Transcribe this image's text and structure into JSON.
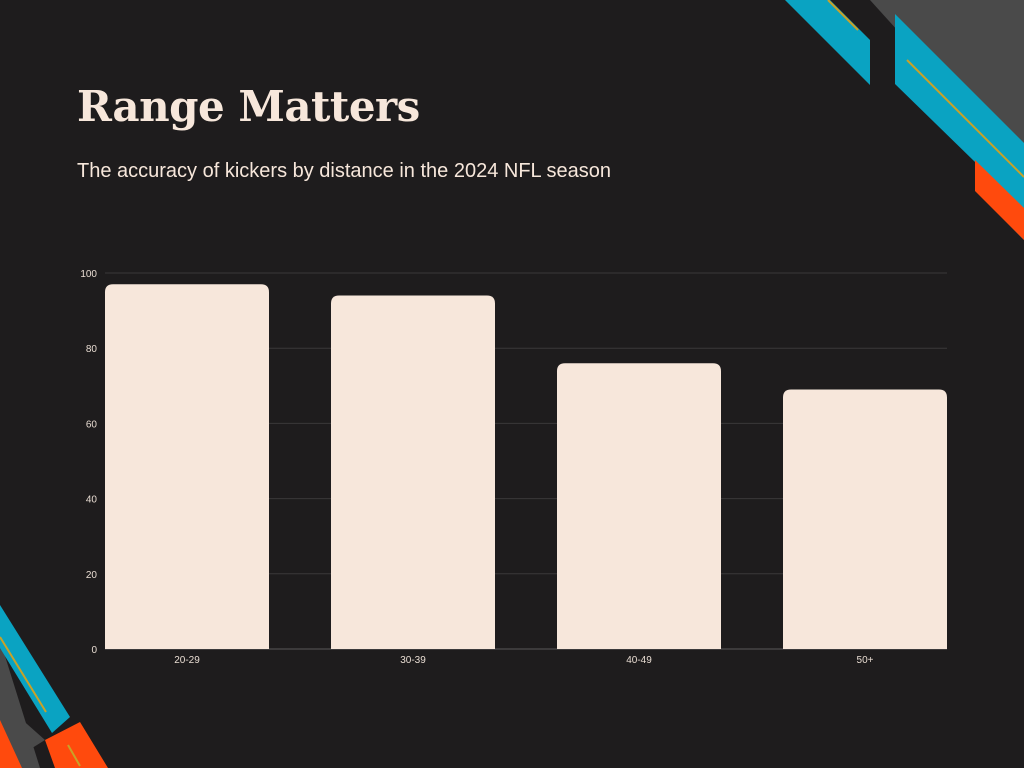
{
  "slide": {
    "title": "Range Matters",
    "subtitle": "The accuracy of kickers by distance in the 2024 NFL season"
  },
  "colors": {
    "background": "#1e1c1d",
    "bar": "#f7e7db",
    "text": "#f7e7db",
    "gridline": "#3a3839",
    "accent_blue": "#0aa3c2",
    "accent_orange": "#ff4a0d",
    "accent_gray": "#4a4a4a",
    "accent_gold": "#c9a227"
  },
  "chart_data": {
    "type": "bar",
    "categories": [
      "20-29",
      "30-39",
      "40-49",
      "50+"
    ],
    "values": [
      97,
      94,
      76,
      69
    ],
    "title": "",
    "xlabel": "",
    "ylabel": "",
    "ylim": [
      0,
      100
    ],
    "yticks": [
      "0",
      "20",
      "40",
      "60",
      "80",
      "100"
    ],
    "grid": true,
    "legend": "none"
  }
}
